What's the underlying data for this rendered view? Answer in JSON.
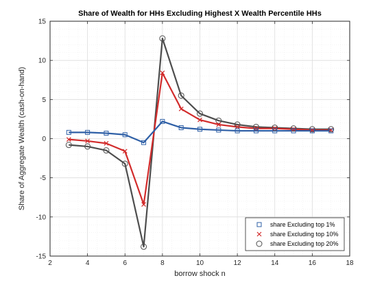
{
  "chart_data": {
    "type": "line",
    "title": "Share of Wealth for HHs Excluding Highest X Wealth Percentile HHs",
    "xlabel": "borrow shock n",
    "ylabel": "Share of Aggregate Wealth (cash-on-hand)",
    "xlim": [
      2,
      18
    ],
    "ylim": [
      -15,
      15
    ],
    "xticks": [
      2,
      4,
      6,
      8,
      10,
      12,
      14,
      16,
      18
    ],
    "yticks": [
      -15,
      -10,
      -5,
      0,
      5,
      10,
      15
    ],
    "grid": true,
    "minor_grid": true,
    "legend_position": "bottom-right",
    "x": [
      3,
      4,
      5,
      6,
      7,
      8,
      9,
      10,
      11,
      12,
      13,
      14,
      15,
      16,
      17
    ],
    "series": [
      {
        "name": "share Excluding top 1%",
        "color": "#2e5fa6",
        "marker": "square",
        "values": [
          0.8,
          0.8,
          0.7,
          0.5,
          -0.5,
          2.2,
          1.4,
          1.2,
          1.1,
          1.0,
          1.0,
          1.0,
          1.0,
          1.0,
          1.0
        ]
      },
      {
        "name": "share Excluding top 10%",
        "color": "#d22b2b",
        "marker": "x",
        "values": [
          -0.1,
          -0.3,
          -0.6,
          -1.6,
          -8.4,
          8.4,
          3.8,
          2.4,
          1.8,
          1.5,
          1.3,
          1.3,
          1.2,
          1.1,
          1.1
        ]
      },
      {
        "name": "share Excluding top 20%",
        "color": "#4d4d4d",
        "marker": "circle",
        "values": [
          -0.8,
          -1.0,
          -1.5,
          -3.2,
          -13.8,
          12.8,
          5.5,
          3.2,
          2.3,
          1.8,
          1.5,
          1.4,
          1.3,
          1.2,
          1.2
        ]
      }
    ]
  }
}
